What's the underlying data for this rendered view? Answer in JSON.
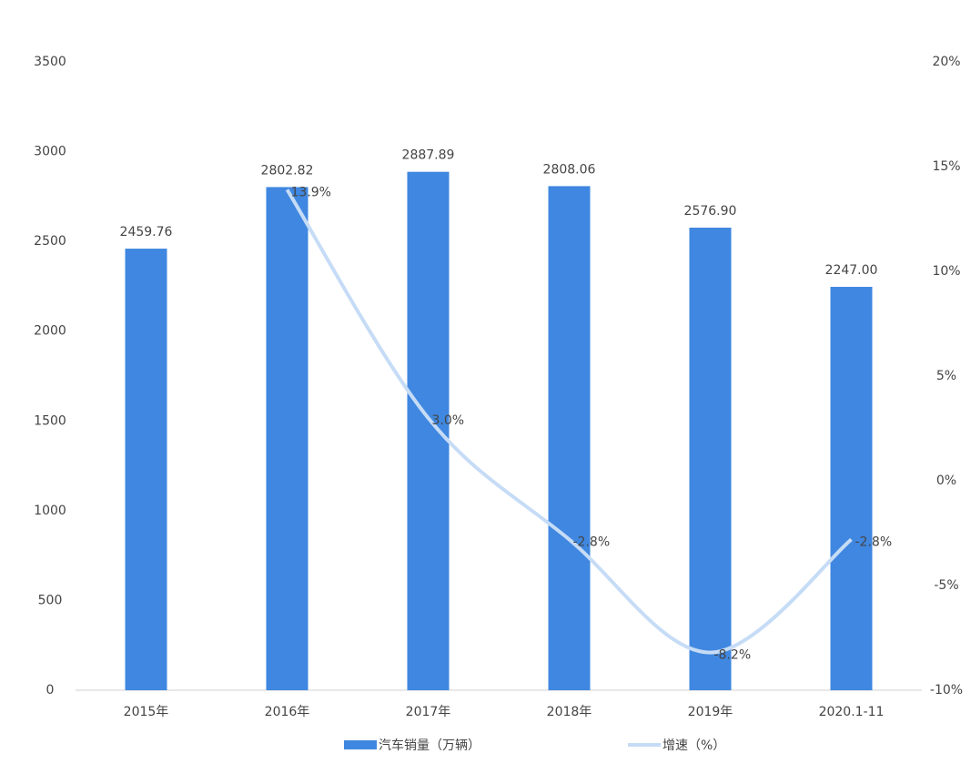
{
  "chart_data": {
    "type": "bar-line",
    "categories": [
      "2015年",
      "2016年",
      "2017年",
      "2018年",
      "2019年",
      "2020.1-11"
    ],
    "series": [
      {
        "name": "汽车销量（万辆）",
        "color": "#3f87e0",
        "type": "bar",
        "values": [
          2459.76,
          2802.82,
          2887.89,
          2808.06,
          2576.9,
          2247
        ],
        "value_labels": [
          "2459.76",
          "2802.82",
          "2887.89",
          "2808.06",
          "2576.90",
          "2247.00"
        ]
      },
      {
        "name": "增速（%）",
        "color": "#c6dcf6",
        "type": "line",
        "axis": "y2",
        "values": [
          null,
          13.9,
          3,
          -2.8,
          -8.2,
          -2.8
        ],
        "value_labels": [
          null,
          "13.9%",
          "3.0%",
          "-2.8%",
          "-8.2%",
          "-2.8%"
        ]
      }
    ],
    "ylim": [
      0,
      3500
    ],
    "yticks": [
      0,
      500,
      1000,
      1500,
      2000,
      2500,
      3000,
      3500
    ],
    "y2lim": [
      -10,
      20
    ],
    "y2ticks": [
      {
        "value": -10,
        "label": "-10%"
      },
      {
        "value": -5,
        "label": "-5%"
      },
      {
        "value": 0,
        "label": "0%"
      },
      {
        "value": 5,
        "label": "5%"
      },
      {
        "value": 10,
        "label": "10%"
      },
      {
        "value": 15,
        "label": "15%"
      },
      {
        "value": 20,
        "label": "20%"
      }
    ],
    "legend": "bottom"
  }
}
